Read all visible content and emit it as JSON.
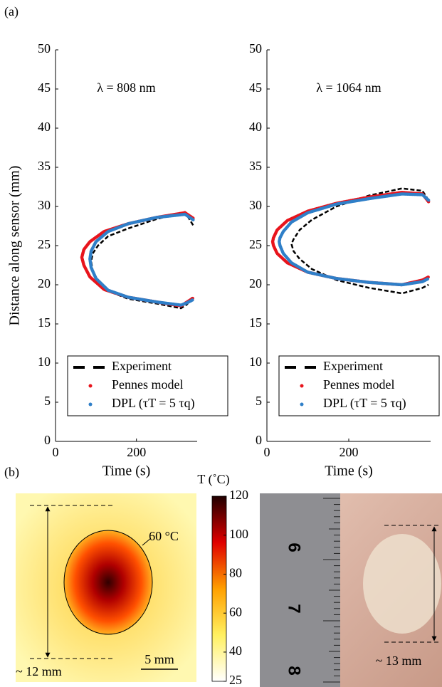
{
  "panel_a_label": "(a)",
  "panel_b_label": "(b)",
  "chart_data": [
    {
      "type": "line",
      "annotation": "λ = 808 nm",
      "xlabel": "Time (s)",
      "ylabel": "Distance along sensor (mm)",
      "xlim": [
        0,
        350
      ],
      "ylim": [
        0,
        50
      ],
      "xticks": [
        0,
        200
      ],
      "yticks": [
        0,
        5,
        10,
        15,
        20,
        25,
        30,
        35,
        40,
        45,
        50
      ],
      "legend": "lower center",
      "series": [
        {
          "name": "Experiment",
          "color": "#000000",
          "style": "dashed",
          "x": [
            340,
            320,
            250,
            180,
            130,
            105,
            92,
            88,
            92,
            105,
            130,
            180,
            250,
            310,
            325,
            340
          ],
          "values": [
            27.6,
            29.3,
            28.4,
            27.2,
            26.2,
            25.0,
            24.0,
            23.0,
            21.8,
            20.5,
            19.2,
            18.2,
            17.6,
            17.0,
            17.5,
            18.5
          ]
        },
        {
          "name": "Pennes model",
          "color": "#e8141c",
          "style": "dotted",
          "x": [
            340,
            320,
            250,
            180,
            120,
            85,
            70,
            65,
            70,
            85,
            120,
            180,
            250,
            310,
            325,
            340
          ],
          "values": [
            28.5,
            29.2,
            28.6,
            27.8,
            26.8,
            25.5,
            24.5,
            23.5,
            22.5,
            21.0,
            19.4,
            18.4,
            17.8,
            17.3,
            17.8,
            18.3
          ]
        },
        {
          "name": "DPL (τT = 5 τq)",
          "color": "#2f7fc8",
          "style": "dotted",
          "x": [
            340,
            320,
            250,
            180,
            130,
            100,
            88,
            85,
            88,
            100,
            130,
            180,
            250,
            310,
            325,
            340
          ],
          "values": [
            28.3,
            29.0,
            28.6,
            27.8,
            26.8,
            25.5,
            24.3,
            23.3,
            22.2,
            20.8,
            19.3,
            18.4,
            17.8,
            17.4,
            17.7,
            18.1
          ]
        }
      ]
    },
    {
      "type": "line",
      "annotation": "λ = 1064 nm",
      "xlabel": "Time (s)",
      "xlim": [
        0,
        400
      ],
      "ylim": [
        0,
        50
      ],
      "xticks": [
        0,
        200
      ],
      "yticks": [
        0,
        5,
        10,
        15,
        20,
        25,
        30,
        35,
        40,
        45,
        50
      ],
      "legend": "lower center",
      "series": [
        {
          "name": "Experiment",
          "color": "#000000",
          "style": "dashed",
          "x": [
            395,
            380,
            330,
            250,
            170,
            110,
            80,
            65,
            60,
            65,
            80,
            110,
            170,
            250,
            330,
            380,
            395
          ],
          "values": [
            30.8,
            32.0,
            32.3,
            31.4,
            30.0,
            28.3,
            27.0,
            25.8,
            25.2,
            24.3,
            23.3,
            22.0,
            20.6,
            19.6,
            18.9,
            19.6,
            20.0
          ]
        },
        {
          "name": "Pennes model",
          "color": "#e8141c",
          "style": "dotted",
          "x": [
            395,
            380,
            330,
            250,
            170,
            100,
            50,
            25,
            16,
            14,
            16,
            25,
            50,
            100,
            170,
            250,
            330,
            380,
            395
          ],
          "values": [
            30.6,
            31.6,
            31.8,
            31.2,
            30.4,
            29.4,
            28.2,
            27.0,
            26.0,
            25.5,
            25.0,
            24.0,
            22.8,
            21.6,
            20.8,
            20.3,
            20.0,
            20.6,
            21.0
          ]
        },
        {
          "name": "DPL (τT = 5 τq)",
          "color": "#2f7fc8",
          "style": "dotted",
          "x": [
            395,
            380,
            330,
            250,
            170,
            100,
            60,
            40,
            32,
            30,
            32,
            40,
            60,
            100,
            170,
            250,
            330,
            380,
            395
          ],
          "values": [
            30.8,
            31.5,
            31.6,
            31.0,
            30.3,
            29.2,
            28.0,
            26.8,
            26.0,
            25.5,
            25.0,
            24.0,
            22.8,
            21.6,
            20.8,
            20.3,
            20.0,
            20.4,
            20.8
          ]
        }
      ]
    }
  ],
  "colorbar": {
    "title": "T (˚C)",
    "lim": [
      25,
      120
    ],
    "ticks": [
      25,
      40,
      60,
      80,
      100,
      120
    ]
  },
  "simulation": {
    "isotherm": "60 °C",
    "size": "~ 12 mm",
    "scale": "5 mm"
  },
  "photo": {
    "ruler": [
      "6",
      "7",
      "8"
    ],
    "size": "~ 13 mm"
  }
}
